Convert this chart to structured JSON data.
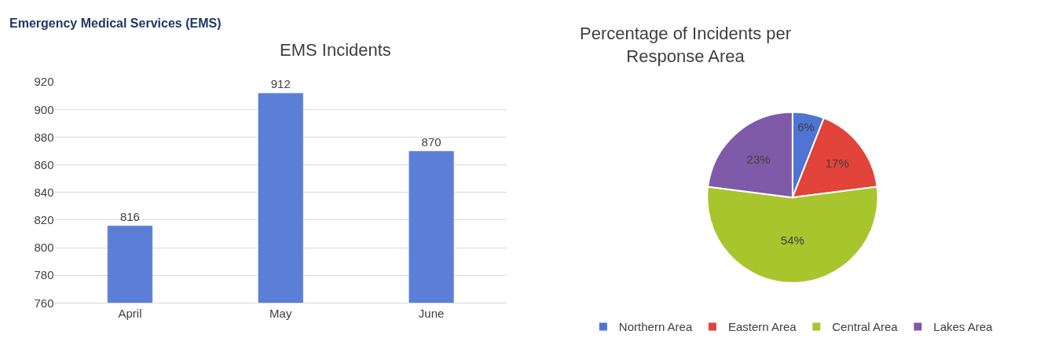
{
  "chart_data": [
    {
      "type": "bar",
      "title": "EMS Incidents",
      "annotations": [
        "Emergency Medical Services (EMS)"
      ],
      "categories": [
        "April",
        "May",
        "June"
      ],
      "values": [
        816,
        912,
        870
      ],
      "color": "#5b7fd6",
      "ylim": [
        760,
        920
      ],
      "yticks": [
        760,
        780,
        800,
        820,
        840,
        860,
        880,
        900,
        920
      ],
      "grid": "y",
      "data_labels": true,
      "legend": false
    },
    {
      "type": "pie",
      "title": "Percentage of Incidents per\nResponse Area",
      "categories": [
        "Northern Area",
        "Eastern Area",
        "Central Area",
        "Lakes Area"
      ],
      "values": [
        6,
        17,
        54,
        23
      ],
      "colors": [
        "#4f74d4",
        "#e2433a",
        "#a8c52e",
        "#7f5aa8"
      ],
      "value_labels": [
        "6%",
        "17%",
        "54%",
        "23%"
      ],
      "legend": "bottom"
    }
  ]
}
